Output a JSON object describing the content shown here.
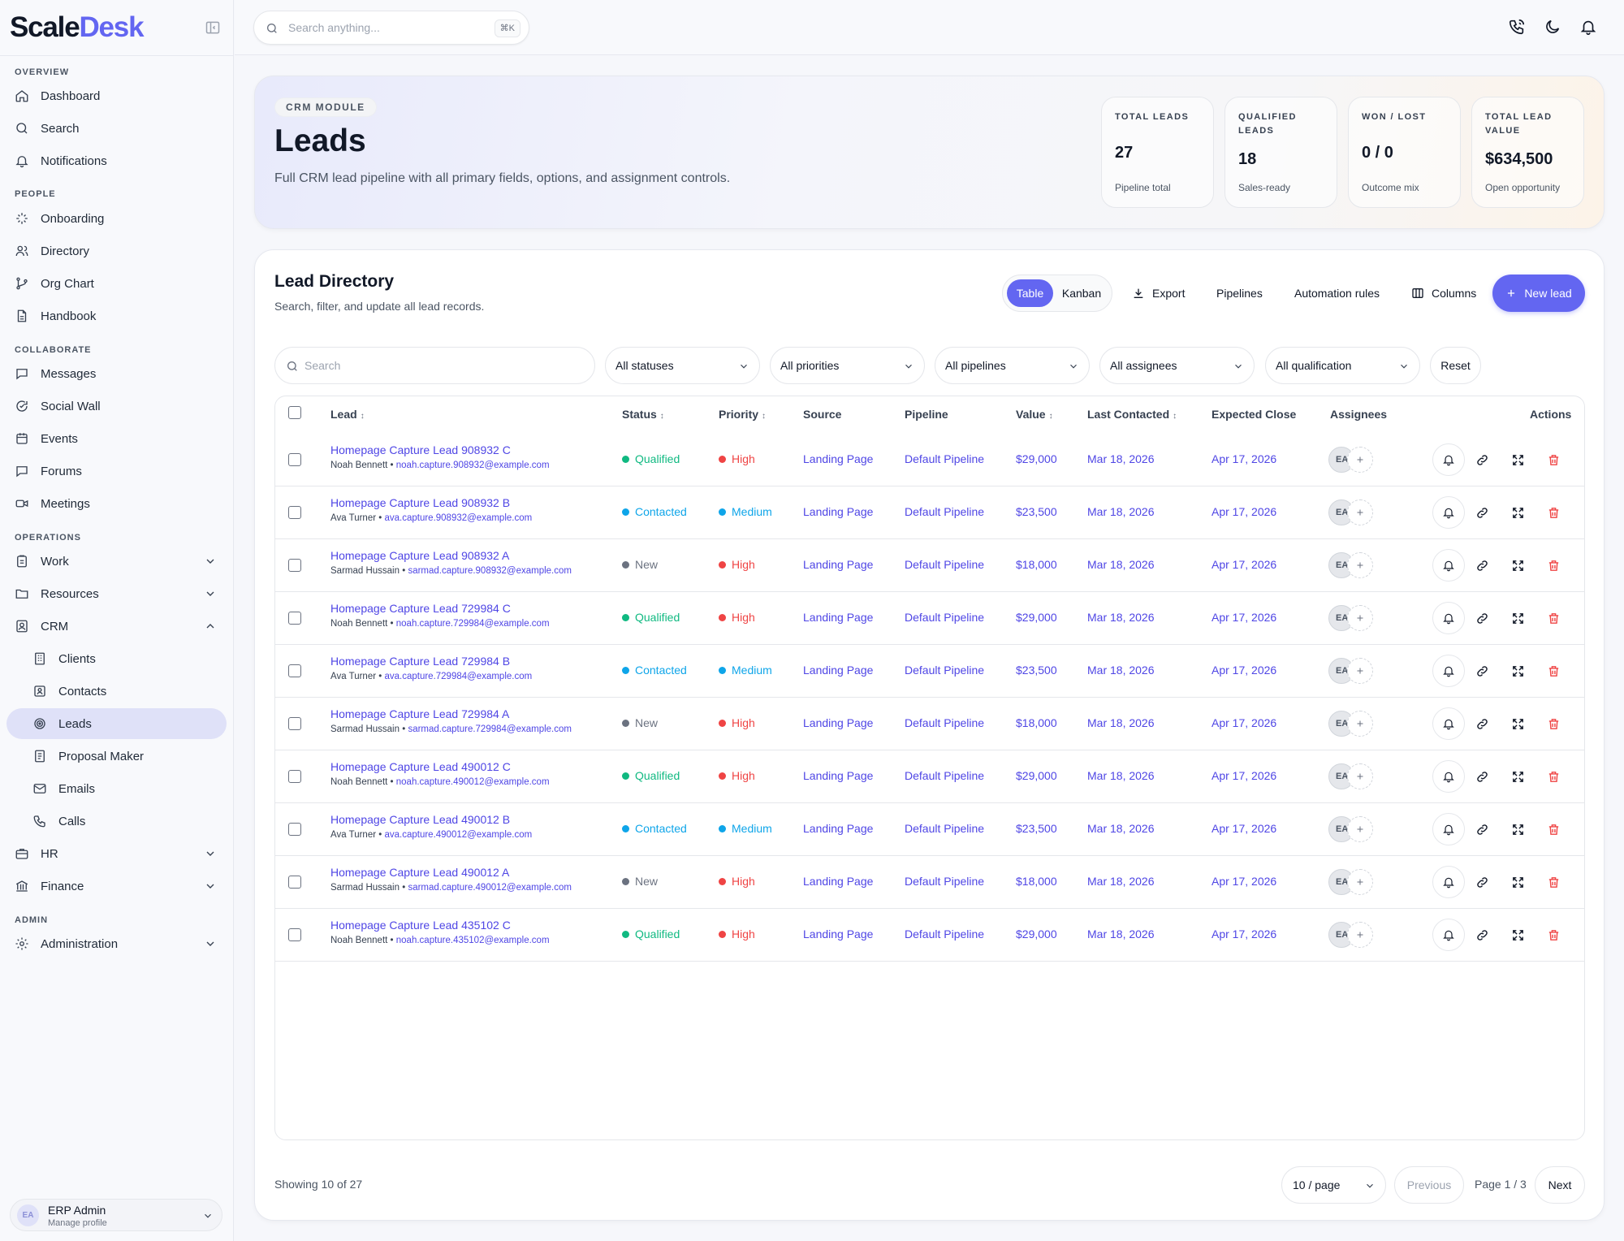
{
  "app": {
    "brand_main": "Scale",
    "brand_accent": "Desk"
  },
  "colors": {
    "accent": "#6366f1",
    "success": "#10b981",
    "info": "#0ea5e9",
    "danger": "#ef4444",
    "neutral": "#6b7280"
  },
  "sidebar": {
    "sections": {
      "overview": "OVERVIEW",
      "people": "PEOPLE",
      "collaborate": "COLLABORATE",
      "operations": "OPERATIONS",
      "admin": "ADMIN"
    },
    "items": {
      "dashboard": "Dashboard",
      "search": "Search",
      "notifications": "Notifications",
      "onboarding": "Onboarding",
      "directory": "Directory",
      "org_chart": "Org Chart",
      "handbook": "Handbook",
      "messages": "Messages",
      "social_wall": "Social Wall",
      "events": "Events",
      "forums": "Forums",
      "meetings": "Meetings",
      "work": "Work",
      "resources": "Resources",
      "crm": "CRM",
      "clients": "Clients",
      "contacts": "Contacts",
      "leads": "Leads",
      "proposal_maker": "Proposal Maker",
      "emails": "Emails",
      "calls": "Calls",
      "hr": "HR",
      "finance": "Finance",
      "administration": "Administration"
    },
    "active": "leads",
    "profile": {
      "initials": "EA",
      "name": "ERP Admin",
      "sub": "Manage profile"
    }
  },
  "topbar": {
    "search_placeholder": "Search anything...",
    "shortcut": "⌘K",
    "icons": [
      "phone-icon",
      "moon-icon",
      "bell-icon"
    ]
  },
  "hero": {
    "badge": "CRM MODULE",
    "title": "Leads",
    "subtitle": "Full CRM lead pipeline with all primary fields, options, and assignment controls.",
    "stats": [
      {
        "label": "TOTAL LEADS",
        "value": "27",
        "caption": "Pipeline total"
      },
      {
        "label": "QUALIFIED LEADS",
        "value": "18",
        "caption": "Sales-ready"
      },
      {
        "label": "WON / LOST",
        "value": "0 / 0",
        "caption": "Outcome mix"
      },
      {
        "label": "TOTAL LEAD VALUE",
        "value": "$634,500",
        "caption": "Open opportunity"
      }
    ]
  },
  "directory": {
    "title": "Lead Directory",
    "subtitle": "Search, filter, and update all lead records.",
    "view_toggle": {
      "table": "Table",
      "kanban": "Kanban",
      "active": "Table"
    },
    "buttons": {
      "export": "Export",
      "pipelines": "Pipelines",
      "automation": "Automation rules",
      "columns": "Columns",
      "new_lead": "New lead"
    },
    "filters": {
      "search_placeholder": "Search",
      "status": "All statuses",
      "priority": "All priorities",
      "pipeline": "All pipelines",
      "assignee": "All assignees",
      "qualification": "All qualification",
      "reset": "Reset"
    },
    "columns": {
      "lead": "Lead",
      "status": "Status",
      "priority": "Priority",
      "source": "Source",
      "pipeline": "Pipeline",
      "value": "Value",
      "last_contacted": "Last Contacted",
      "expected_close": "Expected Close",
      "assignees": "Assignees",
      "actions": "Actions"
    },
    "rows": [
      {
        "name": "Homepage Capture Lead 908932 C",
        "contact": "Noah Bennett",
        "email": "noah.capture.908932@example.com",
        "status": "Qualified",
        "priority": "High",
        "source": "Landing Page",
        "pipeline": "Default Pipeline",
        "value": "$29,000",
        "last_contacted": "Mar 18, 2026",
        "expected_close": "Apr 17, 2026",
        "assignee": "EA"
      },
      {
        "name": "Homepage Capture Lead 908932 B",
        "contact": "Ava Turner",
        "email": "ava.capture.908932@example.com",
        "status": "Contacted",
        "priority": "Medium",
        "source": "Landing Page",
        "pipeline": "Default Pipeline",
        "value": "$23,500",
        "last_contacted": "Mar 18, 2026",
        "expected_close": "Apr 17, 2026",
        "assignee": "EA"
      },
      {
        "name": "Homepage Capture Lead 908932 A",
        "contact": "Sarmad Hussain",
        "email": "sarmad.capture.908932@example.com",
        "status": "New",
        "priority": "High",
        "source": "Landing Page",
        "pipeline": "Default Pipeline",
        "value": "$18,000",
        "last_contacted": "Mar 18, 2026",
        "expected_close": "Apr 17, 2026",
        "assignee": "EA"
      },
      {
        "name": "Homepage Capture Lead 729984 C",
        "contact": "Noah Bennett",
        "email": "noah.capture.729984@example.com",
        "status": "Qualified",
        "priority": "High",
        "source": "Landing Page",
        "pipeline": "Default Pipeline",
        "value": "$29,000",
        "last_contacted": "Mar 18, 2026",
        "expected_close": "Apr 17, 2026",
        "assignee": "EA"
      },
      {
        "name": "Homepage Capture Lead 729984 B",
        "contact": "Ava Turner",
        "email": "ava.capture.729984@example.com",
        "status": "Contacted",
        "priority": "Medium",
        "source": "Landing Page",
        "pipeline": "Default Pipeline",
        "value": "$23,500",
        "last_contacted": "Mar 18, 2026",
        "expected_close": "Apr 17, 2026",
        "assignee": "EA"
      },
      {
        "name": "Homepage Capture Lead 729984 A",
        "contact": "Sarmad Hussain",
        "email": "sarmad.capture.729984@example.com",
        "status": "New",
        "priority": "High",
        "source": "Landing Page",
        "pipeline": "Default Pipeline",
        "value": "$18,000",
        "last_contacted": "Mar 18, 2026",
        "expected_close": "Apr 17, 2026",
        "assignee": "EA"
      },
      {
        "name": "Homepage Capture Lead 490012 C",
        "contact": "Noah Bennett",
        "email": "noah.capture.490012@example.com",
        "status": "Qualified",
        "priority": "High",
        "source": "Landing Page",
        "pipeline": "Default Pipeline",
        "value": "$29,000",
        "last_contacted": "Mar 18, 2026",
        "expected_close": "Apr 17, 2026",
        "assignee": "EA"
      },
      {
        "name": "Homepage Capture Lead 490012 B",
        "contact": "Ava Turner",
        "email": "ava.capture.490012@example.com",
        "status": "Contacted",
        "priority": "Medium",
        "source": "Landing Page",
        "pipeline": "Default Pipeline",
        "value": "$23,500",
        "last_contacted": "Mar 18, 2026",
        "expected_close": "Apr 17, 2026",
        "assignee": "EA"
      },
      {
        "name": "Homepage Capture Lead 490012 A",
        "contact": "Sarmad Hussain",
        "email": "sarmad.capture.490012@example.com",
        "status": "New",
        "priority": "High",
        "source": "Landing Page",
        "pipeline": "Default Pipeline",
        "value": "$18,000",
        "last_contacted": "Mar 18, 2026",
        "expected_close": "Apr 17, 2026",
        "assignee": "EA"
      },
      {
        "name": "Homepage Capture Lead 435102 C",
        "contact": "Noah Bennett",
        "email": "noah.capture.435102@example.com",
        "status": "Qualified",
        "priority": "High",
        "source": "Landing Page",
        "pipeline": "Default Pipeline",
        "value": "$29,000",
        "last_contacted": "Mar 18, 2026",
        "expected_close": "Apr 17, 2026",
        "assignee": "EA"
      }
    ],
    "pagination": {
      "showing": "Showing 10 of 27",
      "per_page": "10 / page",
      "previous": "Previous",
      "page_info": "Page 1 / 3",
      "next": "Next"
    }
  }
}
